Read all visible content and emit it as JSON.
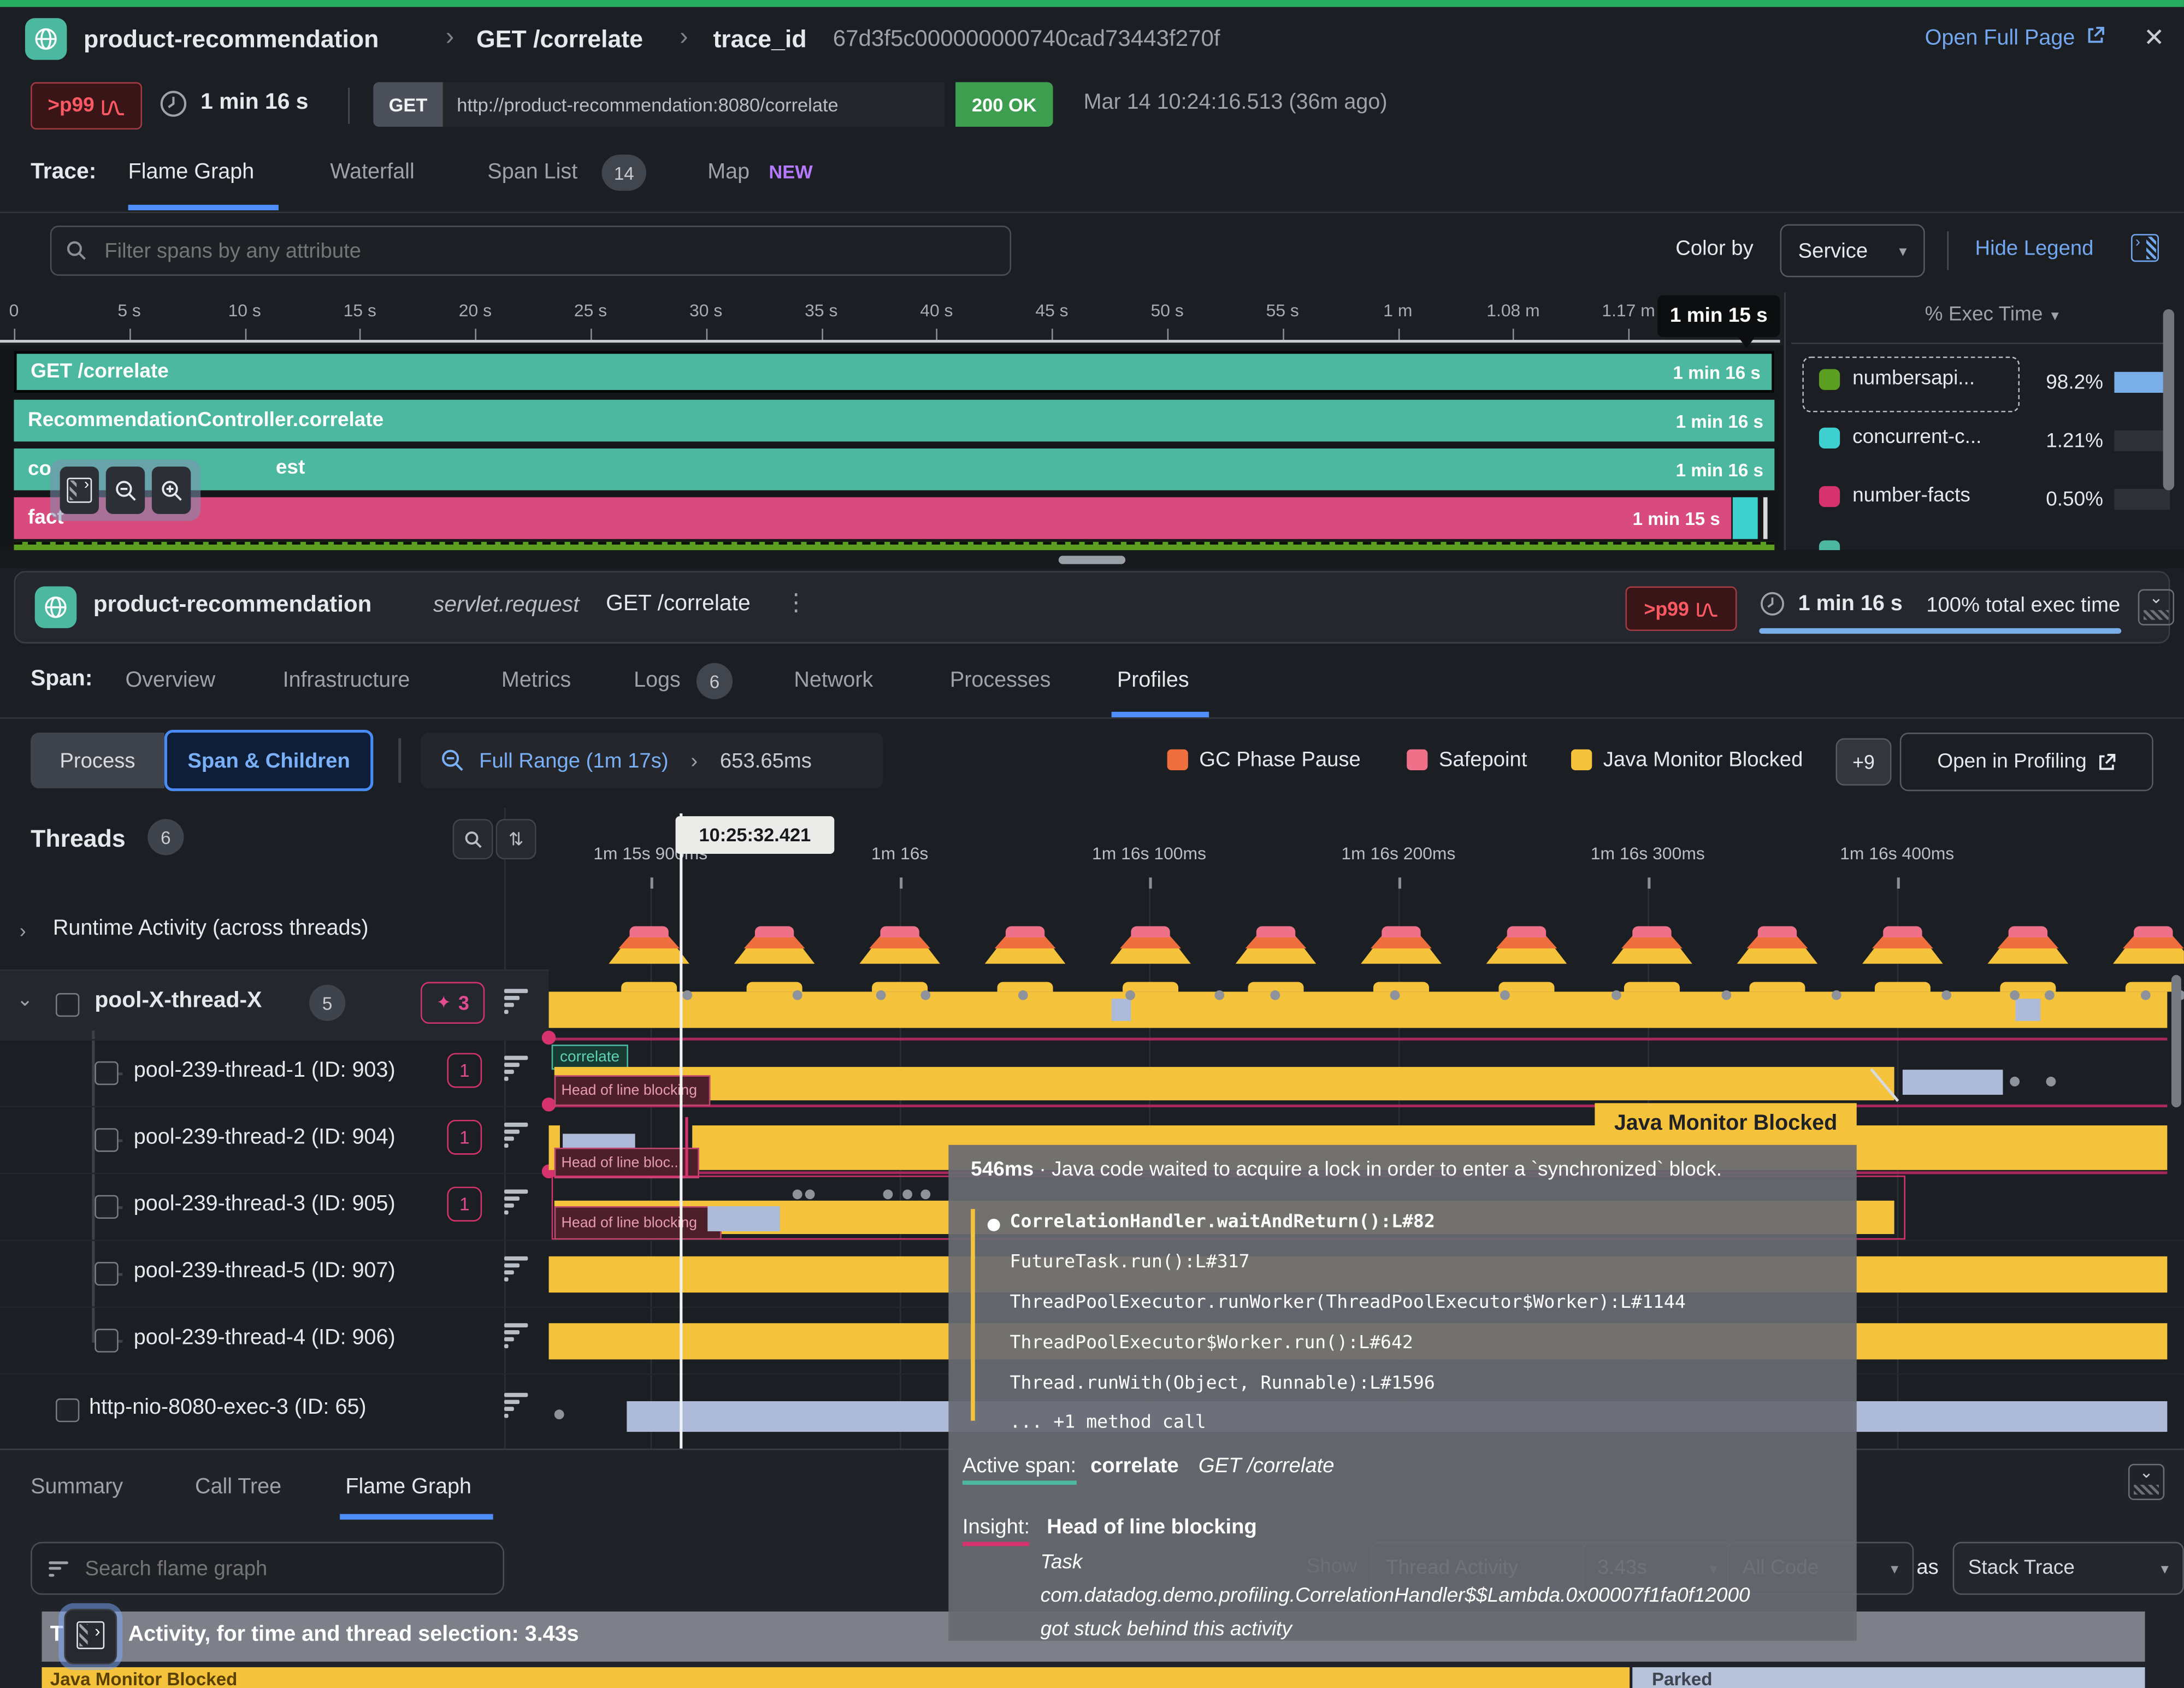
{
  "header": {
    "service": "product-recommendation",
    "sep1": "›",
    "endpoint": "GET /correlate",
    "sep2": "›",
    "trace_label": "trace_id",
    "trace_id": "67d3f5c000000000740cad73443f270f",
    "open_full_page": "Open Full Page",
    "close_icon": "✕"
  },
  "request_bar": {
    "latency_badge": ">p99",
    "duration": "1 min 16 s",
    "method": "GET",
    "url": "http://product-recommendation:8080/correlate",
    "status": "200 OK",
    "timestamp": "Mar 14 10:24:16.513 (36m ago)"
  },
  "trace_tabs": {
    "label": "Trace:",
    "tabs": [
      {
        "label": "Flame Graph"
      },
      {
        "label": "Waterfall"
      },
      {
        "label": "Span List",
        "badge": "14"
      },
      {
        "label": "Map",
        "tag": "NEW"
      }
    ]
  },
  "filter_bar": {
    "placeholder": "Filter spans by any attribute",
    "color_by_label": "Color by",
    "color_by_value": "Service",
    "caret": "▾",
    "hide_legend": "Hide Legend"
  },
  "ruler": {
    "ticks": [
      "0",
      "5 s",
      "10 s",
      "15 s",
      "20 s",
      "25 s",
      "30 s",
      "35 s",
      "40 s",
      "45 s",
      "50 s",
      "55 s",
      "1 m",
      "1.08 m",
      "1.17 m"
    ],
    "cursor_label": "1 min 15 s"
  },
  "flame_spans": {
    "rows": [
      {
        "label": "GET /correlate",
        "duration": "1 min 16 s"
      },
      {
        "label": "RecommendationController.correlate",
        "duration": "1 min 16 s"
      },
      {
        "label_left": "co",
        "label_right": "est",
        "duration": "1 min 16 s"
      },
      {
        "label": "fact",
        "duration": "1 min 15 s"
      }
    ]
  },
  "exec_legend": {
    "header": "% Exec Time",
    "caret": "▾",
    "rows": [
      {
        "name": "numbersapi...",
        "pct": "98.2%"
      },
      {
        "name": "concurrent-c...",
        "pct": "1.21%"
      },
      {
        "name": "number-facts",
        "pct": "0.50%"
      }
    ]
  },
  "span_bar": {
    "service": "product-recommendation",
    "operation": "servlet.request",
    "resource": "GET /correlate",
    "kebab": "⋮",
    "latency_badge": ">p99",
    "duration": "1 min 16 s",
    "exec_note": "100% total exec time"
  },
  "span_tabs": {
    "label": "Span:",
    "tabs": [
      {
        "label": "Overview"
      },
      {
        "label": "Infrastructure"
      },
      {
        "label": "Metrics"
      },
      {
        "label": "Logs",
        "badge": "6"
      },
      {
        "label": "Network"
      },
      {
        "label": "Processes"
      },
      {
        "label": "Profiles"
      }
    ]
  },
  "profiles_toolbar": {
    "segment_process": "Process",
    "segment_span_children": "Span & Children",
    "range_label": "Full Range (1m 17s)",
    "range_sep": "›",
    "selection": "653.65ms",
    "legend": [
      {
        "label": "GC Phase Pause"
      },
      {
        "label": "Safepoint"
      },
      {
        "label": "Java Monitor Blocked"
      }
    ],
    "more_badge": "+9",
    "open_profiling": "Open in Profiling"
  },
  "threads": {
    "title": "Threads",
    "badge": "6",
    "cursor_time": "10:25:32.421",
    "time_ticks": [
      "1m 15s 900ms",
      "1m 16s",
      "1m 16s 100ms",
      "1m 16s 200ms",
      "1m 16s 300ms",
      "1m 16s 400ms"
    ],
    "runtime_row": "Runtime Activity (across threads)",
    "group": {
      "name": "pool-X-thread-X",
      "badge": "5",
      "insight_count": "3",
      "sparkle": "✦"
    },
    "rows": [
      {
        "name": "pool-239-thread-1 (ID: 903)",
        "badge": "1"
      },
      {
        "name": "pool-239-thread-2 (ID: 904)",
        "badge": "1"
      },
      {
        "name": "pool-239-thread-3 (ID: 905)",
        "badge": "1"
      },
      {
        "name": "pool-239-thread-5 (ID: 907)"
      },
      {
        "name": "pool-239-thread-4 (ID: 906)"
      },
      {
        "name": "http-nio-8080-exec-3 (ID: 65)"
      }
    ],
    "bar_labels": {
      "correlate": "correlate",
      "hol_1": "Head of line blocking",
      "hol_2": "Head of line bloc...",
      "hol_3": "Head of line blocking"
    }
  },
  "tooltip": {
    "title": "Java Monitor Blocked",
    "duration": "546ms",
    "dot_sep": "·",
    "description": "Java code waited to acquire a lock in order to enter a `synchronized` block.",
    "stack": [
      "CorrelationHandler.waitAndReturn():L#82",
      "FutureTask.run():L#317",
      "ThreadPoolExecutor.runWorker(ThreadPoolExecutor$Worker):L#1144",
      "ThreadPoolExecutor$Worker.run():L#642",
      "Thread.runWith(Object, Runnable):L#1596",
      "... +1 method call"
    ],
    "active_span_label": "Active span:",
    "active_span_name": "correlate",
    "active_span_resource": "GET /correlate",
    "insight_label": "Insight:",
    "insight_title": "Head of line blocking",
    "insight_line1": "Task",
    "insight_line2": "com.datadog.demo.profiling.CorrelationHandler$$Lambda.0x00007f1fa0f12000",
    "insight_line3": "got stuck behind this activity"
  },
  "bottom_panel": {
    "tabs": [
      {
        "label": "Summary"
      },
      {
        "label": "Call Tree"
      },
      {
        "label": "Flame Graph"
      }
    ],
    "search_placeholder": "Search flame graph",
    "ghost": {
      "show": "Show",
      "thread_activity": "Thread Activity",
      "duration": "3.43s",
      "for_label": "for",
      "all_code": "All Code",
      "caret": "▾"
    },
    "as_label": "as",
    "stack_trace": "Stack Trace",
    "caret": "▾",
    "header_prefix": "Th",
    "header_text": "Activity, for time and thread selection: 3.43s",
    "root_label": "Java Monitor Blocked",
    "parked_label": "Parked"
  }
}
